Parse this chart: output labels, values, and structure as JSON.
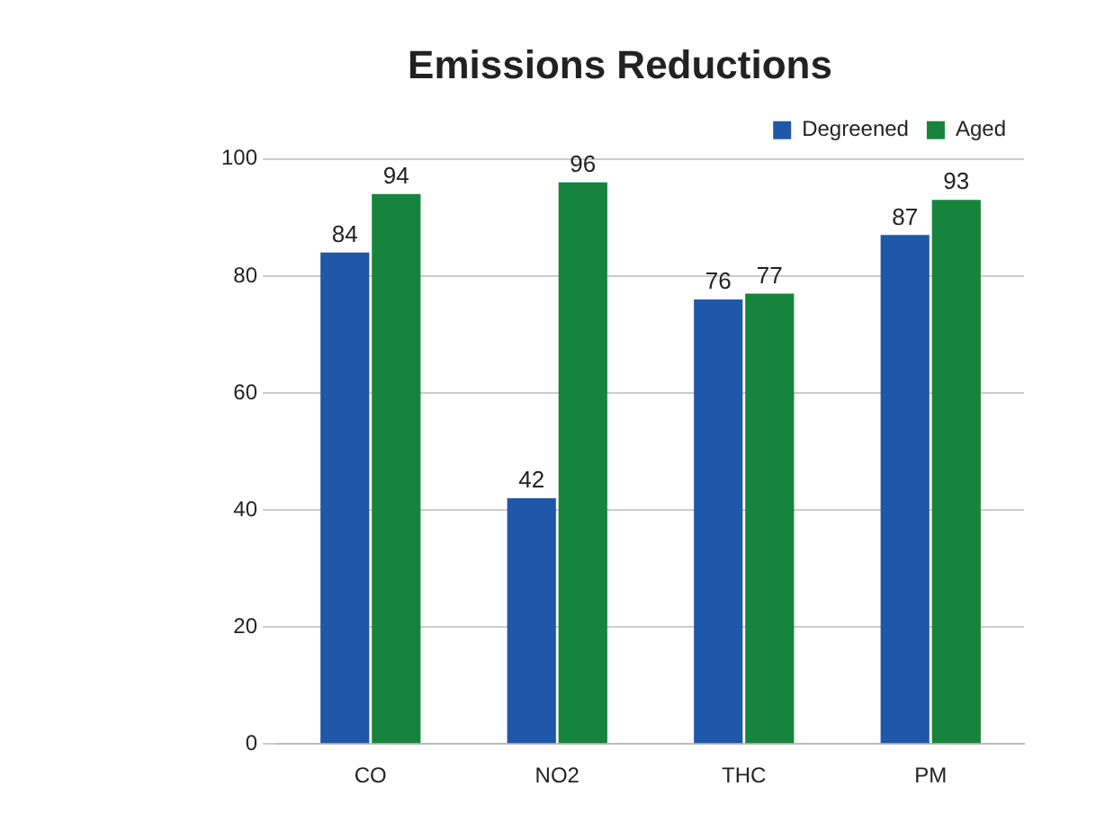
{
  "chart_data": {
    "type": "bar",
    "title": "Emissions Reductions",
    "categories": [
      "CO",
      "NO2",
      "THC",
      "PM"
    ],
    "series": [
      {
        "name": "Degreened",
        "color": "#1f58a8",
        "values": [
          84,
          42,
          76,
          87
        ]
      },
      {
        "name": "Aged",
        "color": "#17843d",
        "values": [
          94,
          96,
          77,
          93
        ]
      }
    ],
    "ylim": [
      0,
      100
    ],
    "yticks": [
      0,
      20,
      40,
      60,
      80,
      100
    ],
    "grid": "y",
    "legend": "top right",
    "data_labels": true
  }
}
